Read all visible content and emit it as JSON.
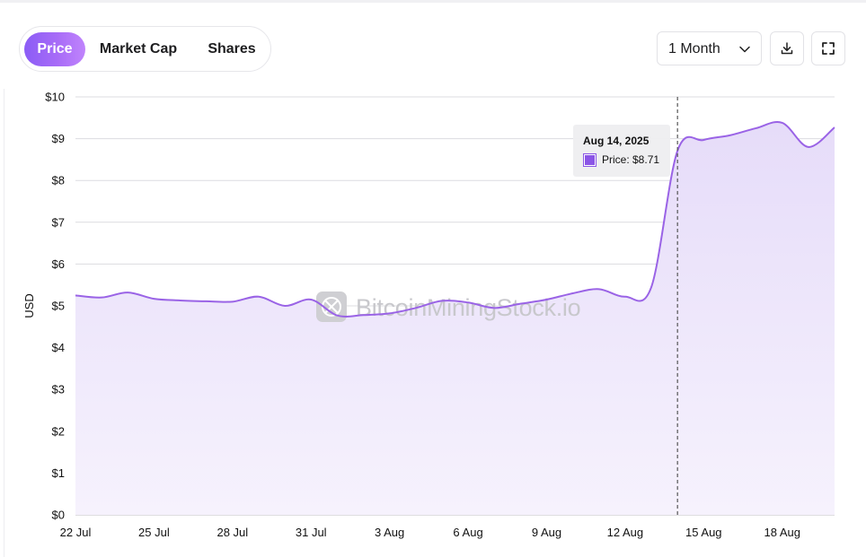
{
  "tabs": [
    {
      "label": "Price",
      "active": true
    },
    {
      "label": "Market Cap",
      "active": false
    },
    {
      "label": "Shares",
      "active": false
    }
  ],
  "range_select": {
    "value": "1 Month"
  },
  "icons": {
    "chevron": "chevron-down-icon",
    "download": "download-icon",
    "fullscreen": "fullscreen-icon"
  },
  "watermark": {
    "text": "BitcoinMiningStock.io"
  },
  "tooltip": {
    "title": "Aug 14, 2025",
    "series_label": "Price: $8.71",
    "x": "2025-08-14"
  },
  "colors": {
    "line": "#9a63e6",
    "fill_top": "#e6dcf9",
    "fill_bottom": "#f6f2fd",
    "accent": "#8b5cf6"
  },
  "chart_data": {
    "type": "area",
    "title": "",
    "xlabel": "",
    "ylabel": "USD",
    "ylim": [
      0,
      10
    ],
    "y_ticks": [
      0,
      1,
      2,
      3,
      4,
      5,
      6,
      7,
      8,
      9,
      10
    ],
    "y_tick_labels": [
      "$0",
      "$1",
      "$2",
      "$3",
      "$4",
      "$5",
      "$6",
      "$7",
      "$8",
      "$9",
      "$10"
    ],
    "xlim": [
      "2025-07-22",
      "2025-08-20"
    ],
    "x_ticks": [
      "2025-07-22",
      "2025-07-25",
      "2025-07-28",
      "2025-07-31",
      "2025-08-03",
      "2025-08-06",
      "2025-08-09",
      "2025-08-12",
      "2025-08-15",
      "2025-08-18"
    ],
    "x_tick_labels": [
      "22 Jul",
      "25 Jul",
      "28 Jul",
      "31 Jul",
      "3 Aug",
      "6 Aug",
      "9 Aug",
      "12 Aug",
      "15 Aug",
      "18 Aug"
    ],
    "grid": true,
    "legend": "none",
    "series": [
      {
        "name": "Price",
        "x": [
          "2025-07-22",
          "2025-07-23",
          "2025-07-24",
          "2025-07-25",
          "2025-07-26",
          "2025-07-27",
          "2025-07-28",
          "2025-07-29",
          "2025-07-30",
          "2025-07-31",
          "2025-08-01",
          "2025-08-02",
          "2025-08-03",
          "2025-08-04",
          "2025-08-05",
          "2025-08-06",
          "2025-08-07",
          "2025-08-08",
          "2025-08-09",
          "2025-08-10",
          "2025-08-11",
          "2025-08-12",
          "2025-08-13",
          "2025-08-14",
          "2025-08-15",
          "2025-08-16",
          "2025-08-17",
          "2025-08-18",
          "2025-08-19",
          "2025-08-20"
        ],
        "values": [
          5.25,
          5.2,
          5.32,
          5.17,
          5.13,
          5.11,
          5.1,
          5.22,
          5.0,
          5.15,
          4.77,
          4.78,
          4.82,
          4.95,
          5.12,
          5.08,
          4.95,
          5.05,
          5.15,
          5.3,
          5.4,
          5.22,
          5.45,
          8.71,
          8.97,
          9.08,
          9.25,
          9.38,
          8.8,
          9.27
        ]
      }
    ]
  }
}
